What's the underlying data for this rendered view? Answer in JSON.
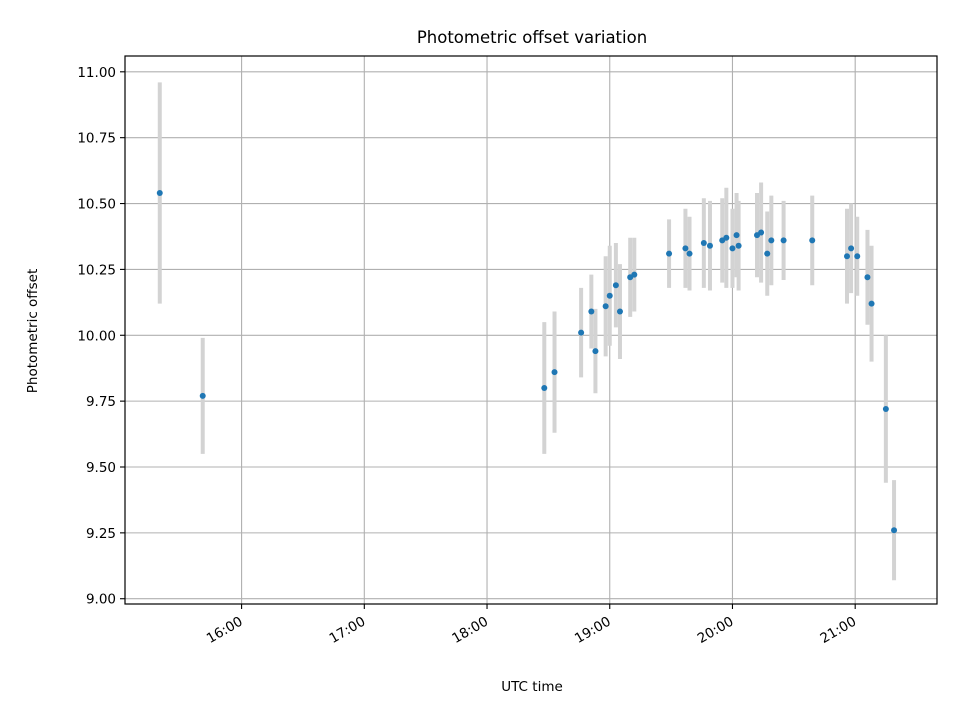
{
  "chart_data": {
    "type": "scatter",
    "title": "Photometric offset variation",
    "xlabel": "UTC time",
    "ylabel": "Photometric offset",
    "x_unit": "hours UTC",
    "xlim": [
      "15:03",
      "21:40"
    ],
    "ylim": [
      8.98,
      11.06
    ],
    "x_ticks": [
      "16:00",
      "17:00",
      "18:00",
      "19:00",
      "20:00",
      "21:00"
    ],
    "y_ticks": [
      "9.00",
      "9.25",
      "9.50",
      "9.75",
      "10.00",
      "10.25",
      "10.50",
      "10.75",
      "11.00"
    ],
    "grid": true,
    "point_color": "#1f77b4",
    "errorbar_color": "#d3d3d3",
    "points": [
      {
        "x": "15:20",
        "y": 10.54,
        "yerr": 0.42
      },
      {
        "x": "15:41",
        "y": 9.77,
        "yerr": 0.22
      },
      {
        "x": "18:28",
        "y": 9.8,
        "yerr": 0.25
      },
      {
        "x": "18:33",
        "y": 9.86,
        "yerr": 0.23
      },
      {
        "x": "18:46",
        "y": 10.01,
        "yerr": 0.17
      },
      {
        "x": "18:51",
        "y": 10.09,
        "yerr": 0.14
      },
      {
        "x": "18:53",
        "y": 9.94,
        "yerr": 0.16
      },
      {
        "x": "18:58",
        "y": 10.11,
        "yerr": 0.19
      },
      {
        "x": "19:00",
        "y": 10.15,
        "yerr": 0.19
      },
      {
        "x": "19:03",
        "y": 10.19,
        "yerr": 0.16
      },
      {
        "x": "19:05",
        "y": 10.09,
        "yerr": 0.18
      },
      {
        "x": "19:10",
        "y": 10.22,
        "yerr": 0.15
      },
      {
        "x": "19:12",
        "y": 10.23,
        "yerr": 0.14
      },
      {
        "x": "19:29",
        "y": 10.31,
        "yerr": 0.13
      },
      {
        "x": "19:37",
        "y": 10.33,
        "yerr": 0.15
      },
      {
        "x": "19:39",
        "y": 10.31,
        "yerr": 0.14
      },
      {
        "x": "19:46",
        "y": 10.35,
        "yerr": 0.17
      },
      {
        "x": "19:49",
        "y": 10.34,
        "yerr": 0.17
      },
      {
        "x": "19:55",
        "y": 10.36,
        "yerr": 0.16
      },
      {
        "x": "19:57",
        "y": 10.37,
        "yerr": 0.19
      },
      {
        "x": "20:00",
        "y": 10.33,
        "yerr": 0.15
      },
      {
        "x": "20:02",
        "y": 10.38,
        "yerr": 0.16
      },
      {
        "x": "20:03",
        "y": 10.34,
        "yerr": 0.17
      },
      {
        "x": "20:12",
        "y": 10.38,
        "yerr": 0.16
      },
      {
        "x": "20:14",
        "y": 10.39,
        "yerr": 0.19
      },
      {
        "x": "20:17",
        "y": 10.31,
        "yerr": 0.16
      },
      {
        "x": "20:19",
        "y": 10.36,
        "yerr": 0.17
      },
      {
        "x": "20:25",
        "y": 10.36,
        "yerr": 0.15
      },
      {
        "x": "20:39",
        "y": 10.36,
        "yerr": 0.17
      },
      {
        "x": "20:56",
        "y": 10.3,
        "yerr": 0.18
      },
      {
        "x": "20:58",
        "y": 10.33,
        "yerr": 0.17
      },
      {
        "x": "21:01",
        "y": 10.3,
        "yerr": 0.15
      },
      {
        "x": "21:06",
        "y": 10.22,
        "yerr": 0.18
      },
      {
        "x": "21:08",
        "y": 10.12,
        "yerr": 0.22
      },
      {
        "x": "21:15",
        "y": 9.72,
        "yerr": 0.28
      },
      {
        "x": "21:19",
        "y": 9.26,
        "yerr": 0.19
      }
    ]
  }
}
